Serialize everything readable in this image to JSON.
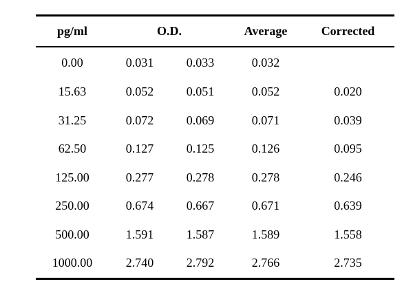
{
  "table": {
    "headers": {
      "concentration": "pg/ml",
      "od": "O.D.",
      "average": "Average",
      "corrected": "Corrected"
    },
    "rows": [
      {
        "conc": "0.00",
        "od1": "0.031",
        "od2": "0.033",
        "avg": "0.032",
        "corr": ""
      },
      {
        "conc": "15.63",
        "od1": "0.052",
        "od2": "0.051",
        "avg": "0.052",
        "corr": "0.020"
      },
      {
        "conc": "31.25",
        "od1": "0.072",
        "od2": "0.069",
        "avg": "0.071",
        "corr": "0.039"
      },
      {
        "conc": "62.50",
        "od1": "0.127",
        "od2": "0.125",
        "avg": "0.126",
        "corr": "0.095"
      },
      {
        "conc": "125.00",
        "od1": "0.277",
        "od2": "0.278",
        "avg": "0.278",
        "corr": "0.246"
      },
      {
        "conc": "250.00",
        "od1": "0.674",
        "od2": "0.667",
        "avg": "0.671",
        "corr": "0.639"
      },
      {
        "conc": "500.00",
        "od1": "1.591",
        "od2": "1.587",
        "avg": "1.589",
        "corr": "1.558"
      },
      {
        "conc": "1000.00",
        "od1": "2.740",
        "od2": "2.792",
        "avg": "2.766",
        "corr": "2.735"
      }
    ]
  }
}
